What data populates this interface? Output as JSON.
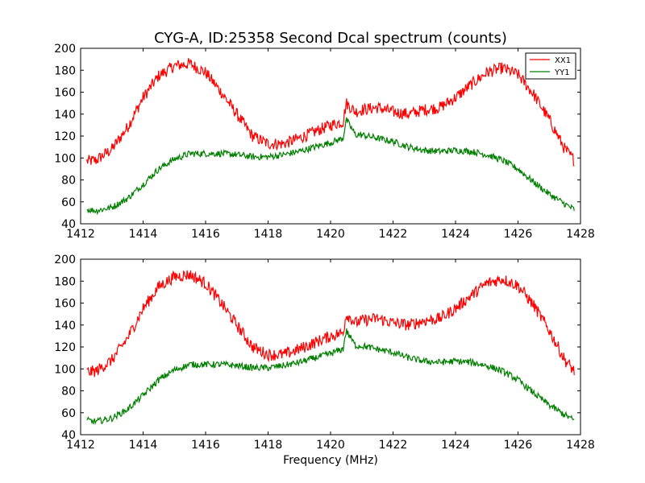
{
  "figure": {
    "title": "CYG-A, ID:25358 Second Dcal spectrum (counts)",
    "xlabel": "Frequency (MHz)"
  },
  "chart_data": [
    {
      "type": "line",
      "title": "CYG-A, ID:25358 Second Dcal spectrum (counts)",
      "xlabel": "",
      "ylabel": "",
      "xlim": [
        1412,
        1428
      ],
      "ylim": [
        40,
        200
      ],
      "xticks": [
        "1412",
        "1414",
        "1416",
        "1418",
        "1420",
        "1422",
        "1424",
        "1426",
        "1428"
      ],
      "yticks": [
        "40",
        "60",
        "80",
        "100",
        "120",
        "140",
        "160",
        "180",
        "200"
      ],
      "grid": false,
      "legend": "top-right",
      "series": [
        {
          "name": "XX1",
          "color": "#ff0000",
          "x": [
            1412.2,
            1412.5,
            1413.0,
            1413.5,
            1414.0,
            1414.5,
            1415.0,
            1415.5,
            1416.0,
            1416.5,
            1417.0,
            1417.5,
            1418.0,
            1418.5,
            1419.0,
            1419.5,
            1420.0,
            1420.4,
            1420.5,
            1420.8,
            1421.0,
            1421.5,
            1422.0,
            1422.5,
            1423.0,
            1423.5,
            1424.0,
            1424.5,
            1425.0,
            1425.5,
            1426.0,
            1426.5,
            1427.0,
            1427.5,
            1427.8
          ],
          "values": [
            97,
            98,
            108,
            128,
            155,
            175,
            184,
            186,
            178,
            160,
            140,
            120,
            113,
            113,
            118,
            124,
            130,
            133,
            150,
            142,
            144,
            146,
            142,
            140,
            144,
            146,
            155,
            167,
            178,
            182,
            176,
            158,
            135,
            108,
            98
          ]
        },
        {
          "name": "YY1",
          "color": "#007f00",
          "x": [
            1412.2,
            1412.5,
            1413.0,
            1413.5,
            1414.0,
            1414.5,
            1415.0,
            1415.5,
            1416.0,
            1416.5,
            1417.0,
            1417.5,
            1418.0,
            1418.5,
            1419.0,
            1419.5,
            1420.0,
            1420.4,
            1420.5,
            1420.8,
            1421.0,
            1421.5,
            1422.0,
            1422.5,
            1423.0,
            1423.5,
            1424.0,
            1424.5,
            1425.0,
            1425.5,
            1426.0,
            1426.5,
            1427.0,
            1427.5,
            1427.8
          ],
          "values": [
            53,
            52,
            55,
            63,
            76,
            90,
            99,
            104,
            104,
            104,
            103,
            101,
            101,
            103,
            106,
            110,
            114,
            118,
            135,
            121,
            121,
            118,
            115,
            110,
            107,
            106,
            107,
            106,
            103,
            98,
            90,
            78,
            67,
            58,
            53
          ]
        }
      ]
    },
    {
      "type": "line",
      "title": "",
      "xlabel": "Frequency (MHz)",
      "ylabel": "",
      "xlim": [
        1412,
        1428
      ],
      "ylim": [
        40,
        200
      ],
      "xticks": [
        "1412",
        "1414",
        "1416",
        "1418",
        "1420",
        "1422",
        "1424",
        "1426",
        "1428"
      ],
      "yticks": [
        "40",
        "60",
        "80",
        "100",
        "120",
        "140",
        "160",
        "180",
        "200"
      ],
      "grid": false,
      "legend": "none",
      "series": [
        {
          "color": "#ff0000",
          "x": [
            1412.2,
            1412.5,
            1413.0,
            1413.5,
            1414.0,
            1414.5,
            1415.0,
            1415.5,
            1416.0,
            1416.5,
            1417.0,
            1417.5,
            1418.0,
            1418.5,
            1419.0,
            1419.5,
            1420.0,
            1420.4,
            1420.5,
            1420.8,
            1421.0,
            1421.5,
            1422.0,
            1422.5,
            1423.0,
            1423.5,
            1424.0,
            1424.5,
            1425.0,
            1425.5,
            1426.0,
            1426.5,
            1427.0,
            1427.5,
            1427.8
          ],
          "values": [
            97,
            98,
            108,
            128,
            155,
            175,
            184,
            186,
            178,
            160,
            140,
            120,
            113,
            113,
            118,
            124,
            130,
            133,
            150,
            142,
            144,
            146,
            142,
            140,
            144,
            146,
            155,
            167,
            178,
            182,
            176,
            158,
            135,
            108,
            98
          ]
        },
        {
          "color": "#007f00",
          "x": [
            1412.2,
            1412.5,
            1413.0,
            1413.5,
            1414.0,
            1414.5,
            1415.0,
            1415.5,
            1416.0,
            1416.5,
            1417.0,
            1417.5,
            1418.0,
            1418.5,
            1419.0,
            1419.5,
            1420.0,
            1420.4,
            1420.5,
            1420.8,
            1421.0,
            1421.5,
            1422.0,
            1422.5,
            1423.0,
            1423.5,
            1424.0,
            1424.5,
            1425.0,
            1425.5,
            1426.0,
            1426.5,
            1427.0,
            1427.5,
            1427.8
          ],
          "values": [
            53,
            52,
            55,
            63,
            76,
            90,
            99,
            104,
            104,
            104,
            103,
            101,
            101,
            103,
            106,
            110,
            114,
            118,
            135,
            121,
            121,
            118,
            115,
            110,
            107,
            106,
            107,
            106,
            103,
            98,
            90,
            78,
            67,
            58,
            53
          ]
        }
      ]
    }
  ]
}
